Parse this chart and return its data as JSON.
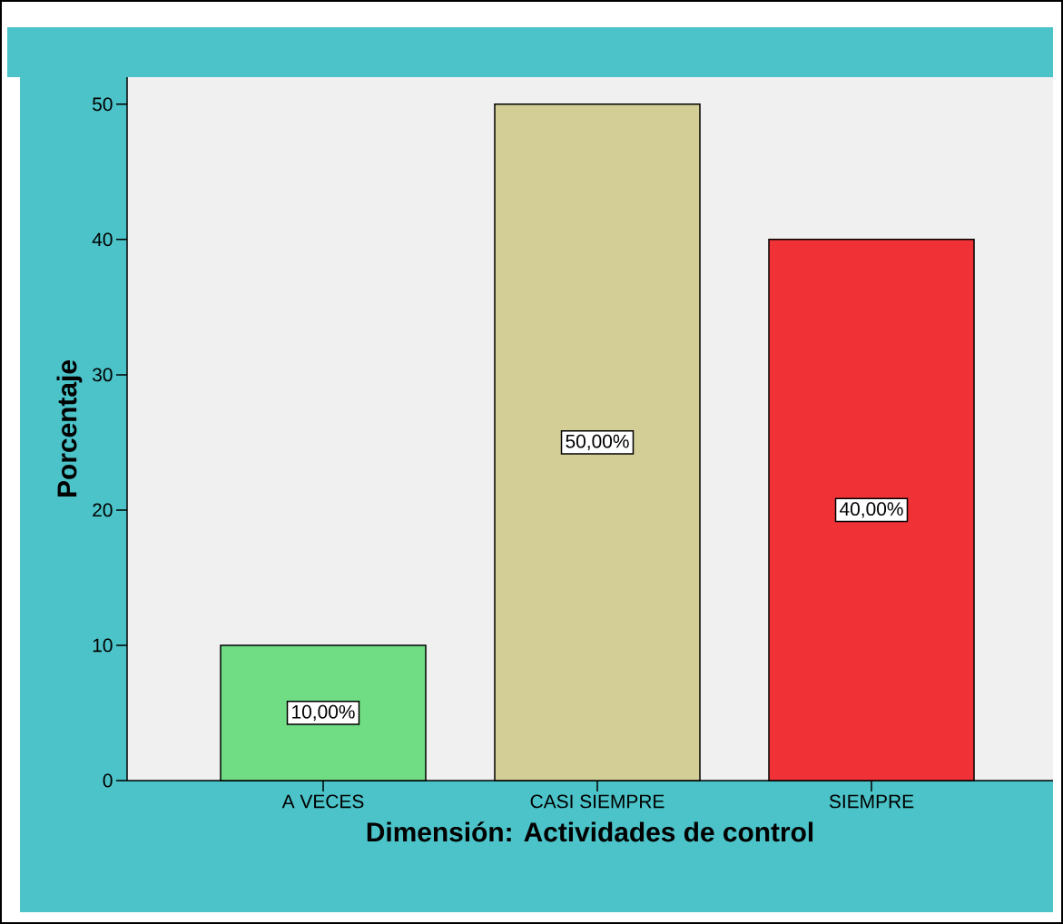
{
  "chart_data": {
    "type": "bar",
    "xlabel": "Dimensión: Actividades de control",
    "ylabel": "Porcentaje",
    "categories": [
      "A VECES",
      "CASI SIEMPRE",
      "SIEMPRE"
    ],
    "values": [
      10,
      50,
      40
    ],
    "colors": [
      "#70dc84",
      "#d3cd96",
      "#f03237"
    ],
    "value_labels": [
      "10,00%",
      "50,00%",
      "40,00%"
    ],
    "ylim": [
      0,
      52
    ],
    "yticks": [
      0,
      10,
      20,
      30,
      40,
      50
    ],
    "grid": false,
    "legend": false
  }
}
